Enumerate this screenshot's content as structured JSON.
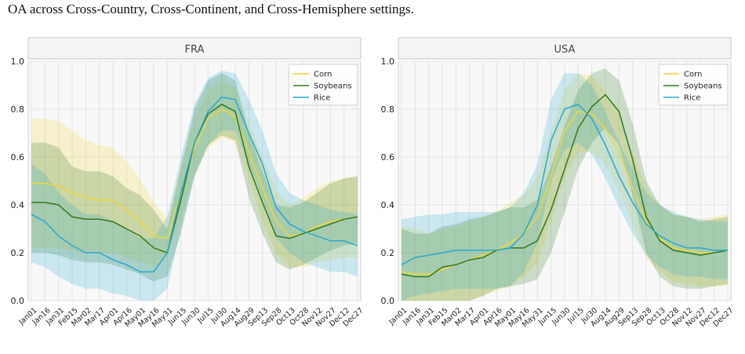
{
  "caption": "OA across Cross-Country, Cross-Continent, and Cross-Hemisphere settings.",
  "colors": {
    "Corn": "#f2d634",
    "Soybeans": "#2f7a1f",
    "Rice": "#29a8d0"
  },
  "chart_data": [
    {
      "type": "line",
      "title": "FRA",
      "xlabel": "",
      "ylabel": "",
      "ylim": [
        0,
        1.0
      ],
      "yticks": [
        "0.0",
        "0.2",
        "0.4",
        "0.6",
        "0.8",
        "1.0"
      ],
      "grid": true,
      "legend": "top-right",
      "categories": [
        "Jan01",
        "Jan16",
        "Jan31",
        "Feb15",
        "Mar02",
        "Mar17",
        "Apr01",
        "Apr16",
        "May01",
        "May16",
        "May31",
        "Jun15",
        "Jun30",
        "Jul15",
        "Jul30",
        "Aug14",
        "Aug29",
        "Sep13",
        "Sep28",
        "Oct13",
        "Oct28",
        "Nov12",
        "Nov27",
        "Dec12",
        "Dec27"
      ],
      "series": [
        {
          "name": "Corn",
          "values": [
            0.49,
            0.49,
            0.48,
            0.45,
            0.43,
            0.42,
            0.42,
            0.38,
            0.33,
            0.27,
            0.26,
            0.45,
            0.64,
            0.76,
            0.8,
            0.77,
            0.62,
            0.47,
            0.33,
            0.27,
            0.28,
            0.31,
            0.33,
            0.34,
            0.35
          ],
          "lower": [
            0.22,
            0.22,
            0.22,
            0.21,
            0.2,
            0.2,
            0.2,
            0.18,
            0.16,
            0.14,
            0.18,
            0.34,
            0.52,
            0.64,
            0.68,
            0.66,
            0.51,
            0.33,
            0.2,
            0.14,
            0.14,
            0.16,
            0.17,
            0.18,
            0.18
          ],
          "upper": [
            0.76,
            0.76,
            0.75,
            0.71,
            0.67,
            0.65,
            0.64,
            0.58,
            0.51,
            0.41,
            0.34,
            0.56,
            0.76,
            0.88,
            0.92,
            0.89,
            0.74,
            0.6,
            0.46,
            0.4,
            0.43,
            0.47,
            0.5,
            0.51,
            0.52
          ]
        },
        {
          "name": "Soybeans",
          "values": [
            0.41,
            0.41,
            0.4,
            0.35,
            0.34,
            0.34,
            0.33,
            0.3,
            0.27,
            0.22,
            0.2,
            0.42,
            0.66,
            0.78,
            0.82,
            0.79,
            0.56,
            0.41,
            0.27,
            0.26,
            0.28,
            0.3,
            0.32,
            0.34,
            0.35
          ],
          "lower": [
            0.2,
            0.2,
            0.19,
            0.17,
            0.16,
            0.16,
            0.15,
            0.13,
            0.11,
            0.08,
            0.1,
            0.28,
            0.52,
            0.65,
            0.69,
            0.67,
            0.43,
            0.28,
            0.16,
            0.13,
            0.15,
            0.18,
            0.21,
            0.23,
            0.24
          ],
          "upper": [
            0.66,
            0.66,
            0.64,
            0.56,
            0.54,
            0.54,
            0.52,
            0.47,
            0.44,
            0.38,
            0.3,
            0.56,
            0.8,
            0.92,
            0.95,
            0.92,
            0.7,
            0.54,
            0.4,
            0.39,
            0.41,
            0.45,
            0.49,
            0.51,
            0.52
          ]
        },
        {
          "name": "Rice",
          "values": [
            0.36,
            0.33,
            0.27,
            0.23,
            0.2,
            0.2,
            0.17,
            0.15,
            0.12,
            0.12,
            0.2,
            0.45,
            0.66,
            0.79,
            0.85,
            0.84,
            0.7,
            0.57,
            0.39,
            0.32,
            0.29,
            0.27,
            0.25,
            0.25,
            0.23
          ],
          "lower": [
            0.16,
            0.14,
            0.1,
            0.07,
            0.05,
            0.05,
            0.03,
            0.02,
            0.0,
            0.0,
            0.05,
            0.3,
            0.52,
            0.65,
            0.71,
            0.71,
            0.57,
            0.43,
            0.26,
            0.2,
            0.16,
            0.14,
            0.12,
            0.12,
            0.1
          ],
          "upper": [
            0.57,
            0.53,
            0.45,
            0.4,
            0.36,
            0.36,
            0.33,
            0.3,
            0.26,
            0.26,
            0.35,
            0.6,
            0.82,
            0.93,
            0.96,
            0.95,
            0.84,
            0.71,
            0.53,
            0.45,
            0.42,
            0.4,
            0.38,
            0.37,
            0.36
          ]
        }
      ]
    },
    {
      "type": "line",
      "title": "USA",
      "xlabel": "",
      "ylabel": "",
      "ylim": [
        0,
        1.0
      ],
      "yticks": [
        "0.0",
        "0.2",
        "0.4",
        "0.6",
        "0.8",
        "1.0"
      ],
      "grid": true,
      "legend": "top-right",
      "categories": [
        "Jan01",
        "Jan16",
        "Jan31",
        "Feb15",
        "Mar02",
        "Mar17",
        "Apr01",
        "Apr16",
        "May01",
        "May16",
        "May31",
        "Jun15",
        "Jun30",
        "Jul15",
        "Jul30",
        "Aug14",
        "Aug29",
        "Sep13",
        "Sep28",
        "Oct13",
        "Oct28",
        "Nov12",
        "Nov27",
        "Dec12",
        "Dec27"
      ],
      "series": [
        {
          "name": "Corn",
          "values": [
            0.12,
            0.11,
            0.11,
            0.13,
            0.15,
            0.17,
            0.19,
            0.21,
            0.24,
            0.28,
            0.35,
            0.52,
            0.71,
            0.79,
            0.78,
            0.72,
            0.62,
            0.47,
            0.33,
            0.26,
            0.22,
            0.21,
            0.2,
            0.2,
            0.21
          ],
          "lower": [
            0.0,
            0.0,
            0.0,
            0.0,
            0.0,
            0.0,
            0.02,
            0.04,
            0.06,
            0.1,
            0.16,
            0.33,
            0.52,
            0.62,
            0.62,
            0.57,
            0.46,
            0.32,
            0.18,
            0.12,
            0.08,
            0.07,
            0.06,
            0.06,
            0.06
          ],
          "upper": [
            0.31,
            0.3,
            0.28,
            0.3,
            0.31,
            0.33,
            0.35,
            0.37,
            0.41,
            0.44,
            0.52,
            0.7,
            0.88,
            0.95,
            0.94,
            0.87,
            0.78,
            0.62,
            0.47,
            0.4,
            0.36,
            0.35,
            0.34,
            0.35,
            0.36
          ]
        },
        {
          "name": "Soybeans",
          "values": [
            0.11,
            0.1,
            0.1,
            0.14,
            0.15,
            0.17,
            0.18,
            0.21,
            0.22,
            0.22,
            0.25,
            0.38,
            0.55,
            0.72,
            0.81,
            0.86,
            0.79,
            0.59,
            0.35,
            0.25,
            0.21,
            0.2,
            0.19,
            0.2,
            0.21
          ],
          "lower": [
            0.0,
            0.0,
            0.0,
            0.0,
            0.0,
            0.0,
            0.02,
            0.05,
            0.06,
            0.07,
            0.09,
            0.2,
            0.37,
            0.55,
            0.66,
            0.72,
            0.65,
            0.44,
            0.2,
            0.1,
            0.06,
            0.05,
            0.05,
            0.06,
            0.07
          ],
          "upper": [
            0.3,
            0.28,
            0.28,
            0.31,
            0.32,
            0.34,
            0.35,
            0.37,
            0.39,
            0.39,
            0.42,
            0.56,
            0.73,
            0.88,
            0.95,
            0.97,
            0.92,
            0.74,
            0.5,
            0.4,
            0.36,
            0.35,
            0.33,
            0.34,
            0.35
          ]
        },
        {
          "name": "Rice",
          "values": [
            0.15,
            0.18,
            0.19,
            0.2,
            0.21,
            0.21,
            0.21,
            0.21,
            0.22,
            0.28,
            0.4,
            0.67,
            0.8,
            0.82,
            0.76,
            0.65,
            0.52,
            0.41,
            0.32,
            0.27,
            0.24,
            0.22,
            0.22,
            0.21,
            0.21
          ],
          "lower": [
            0.0,
            0.02,
            0.03,
            0.04,
            0.05,
            0.05,
            0.05,
            0.05,
            0.06,
            0.12,
            0.24,
            0.5,
            0.63,
            0.66,
            0.61,
            0.51,
            0.39,
            0.28,
            0.19,
            0.14,
            0.11,
            0.1,
            0.1,
            0.09,
            0.09
          ],
          "upper": [
            0.34,
            0.35,
            0.36,
            0.36,
            0.37,
            0.37,
            0.37,
            0.37,
            0.39,
            0.45,
            0.57,
            0.84,
            0.95,
            0.95,
            0.9,
            0.79,
            0.66,
            0.55,
            0.45,
            0.4,
            0.37,
            0.35,
            0.34,
            0.33,
            0.33
          ]
        }
      ]
    }
  ]
}
